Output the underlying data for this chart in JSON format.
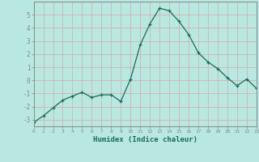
{
  "x": [
    0,
    1,
    2,
    3,
    4,
    5,
    6,
    7,
    8,
    9,
    10,
    11,
    12,
    13,
    14,
    15,
    16,
    17,
    18,
    19,
    20,
    21,
    22,
    23
  ],
  "y": [
    -3.2,
    -2.7,
    -2.1,
    -1.5,
    -1.2,
    -0.9,
    -1.3,
    -1.1,
    -1.1,
    -1.6,
    0.1,
    2.7,
    4.3,
    5.5,
    5.3,
    4.5,
    3.5,
    2.1,
    1.4,
    0.9,
    0.2,
    -0.4,
    0.1,
    -0.6
  ],
  "xlabel": "Humidex (Indice chaleur)",
  "xlim": [
    0,
    23
  ],
  "ylim": [
    -3.5,
    6.0
  ],
  "yticks": [
    -3,
    -2,
    -1,
    0,
    1,
    2,
    3,
    4,
    5
  ],
  "xticks": [
    0,
    1,
    2,
    3,
    4,
    5,
    6,
    7,
    8,
    9,
    10,
    11,
    12,
    13,
    14,
    15,
    16,
    17,
    18,
    19,
    20,
    21,
    22,
    23
  ],
  "bg_color": "#b8e8e0",
  "line_color": "#1a6b5a",
  "grid_color": "#d8a8a8",
  "spine_color": "#888888"
}
